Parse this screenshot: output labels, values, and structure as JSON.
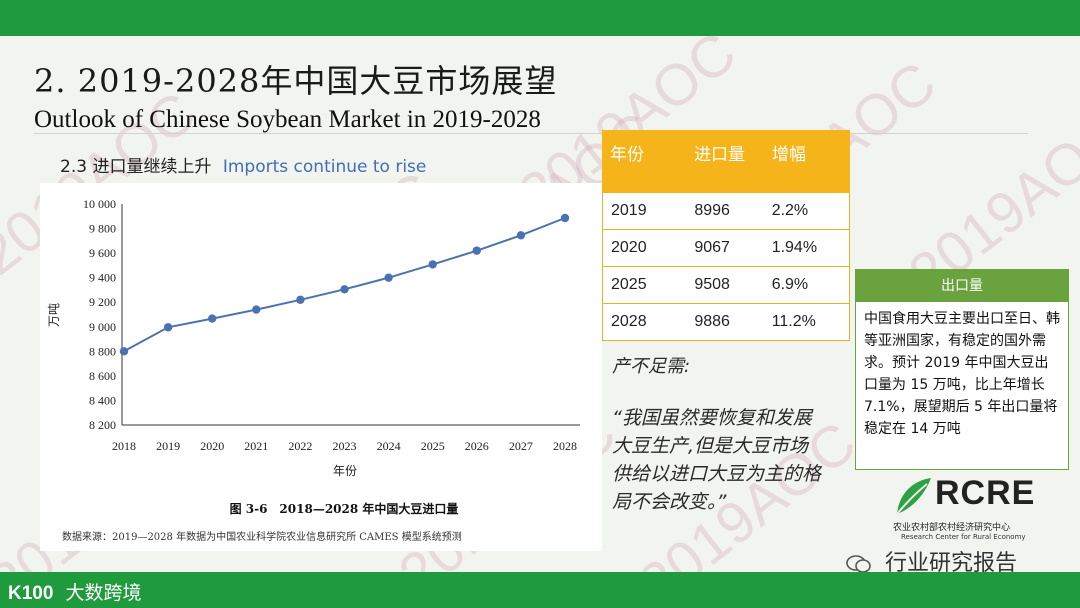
{
  "slide": {
    "title_cn": "2. 2019-2028年中国大豆市场展望",
    "title_en": "Outlook of Chinese Soybean Market in 2019-2028",
    "subtitle_cn": "2.3 进口量继续上升",
    "subtitle_en": "Imports continue to rise"
  },
  "chart_data": {
    "type": "line",
    "x": [
      2018,
      2019,
      2020,
      2021,
      2022,
      2023,
      2024,
      2025,
      2026,
      2027,
      2028
    ],
    "series": [
      {
        "values": [
          8800,
          8996,
          9067,
          9140,
          9220,
          9305,
          9400,
          9508,
          9620,
          9745,
          9886
        ]
      }
    ],
    "title": "图 3-6　2018—2028 年中国大豆进口量",
    "xlabel": "年份",
    "ylabel": "万吨",
    "ylim": [
      8200,
      10000
    ],
    "yticks": [
      "10 000",
      "9 800",
      "9 600",
      "9 400",
      "9 200",
      "9 000",
      "8 800",
      "8 600",
      "8 400",
      "8 200"
    ],
    "grid": false,
    "color": "#4a72b2",
    "source_note": "数据来源：2019—2028 年数据为中国农业科学院农业信息研究所 CAMES 模型系统预测"
  },
  "table": {
    "headers": [
      "年份",
      "进口量",
      "增幅"
    ],
    "rows": [
      [
        "2019",
        "8996",
        "2.2%"
      ],
      [
        "2020",
        "9067",
        "1.94%"
      ],
      [
        "2025",
        "9508",
        "6.9%"
      ],
      [
        "2028",
        "9886",
        "11.2%"
      ]
    ],
    "header_color": "#f6b41b"
  },
  "quote": {
    "head": "产不足需:",
    "text": "“我国虽然要恢复和发展大豆生产,但是大豆市场供给以进口大豆为主的格局不会改变。”"
  },
  "export_box": {
    "header": "出口量",
    "text": "中国食用大豆主要出口至日、韩等亚洲国家，有稳定的国外需求。预计 2019 年中国大豆出口量为 15 万吨，比上年增长 7.1%，展望期后 5 年出口量将稳定在 14 万吨"
  },
  "logo": {
    "name": "RCRE",
    "cn": "农业农村部农村经济研究中心",
    "en": "Research Center for Rural Economy"
  },
  "watermark": "2019AOC",
  "footer": {
    "wechat": "行业研究报告",
    "brand_icon": "K100",
    "brand": "大数跨境"
  },
  "colors": {
    "green_bar": "#1f9a3c",
    "accent_green": "#6aa33e",
    "line": "#4a72b2"
  }
}
